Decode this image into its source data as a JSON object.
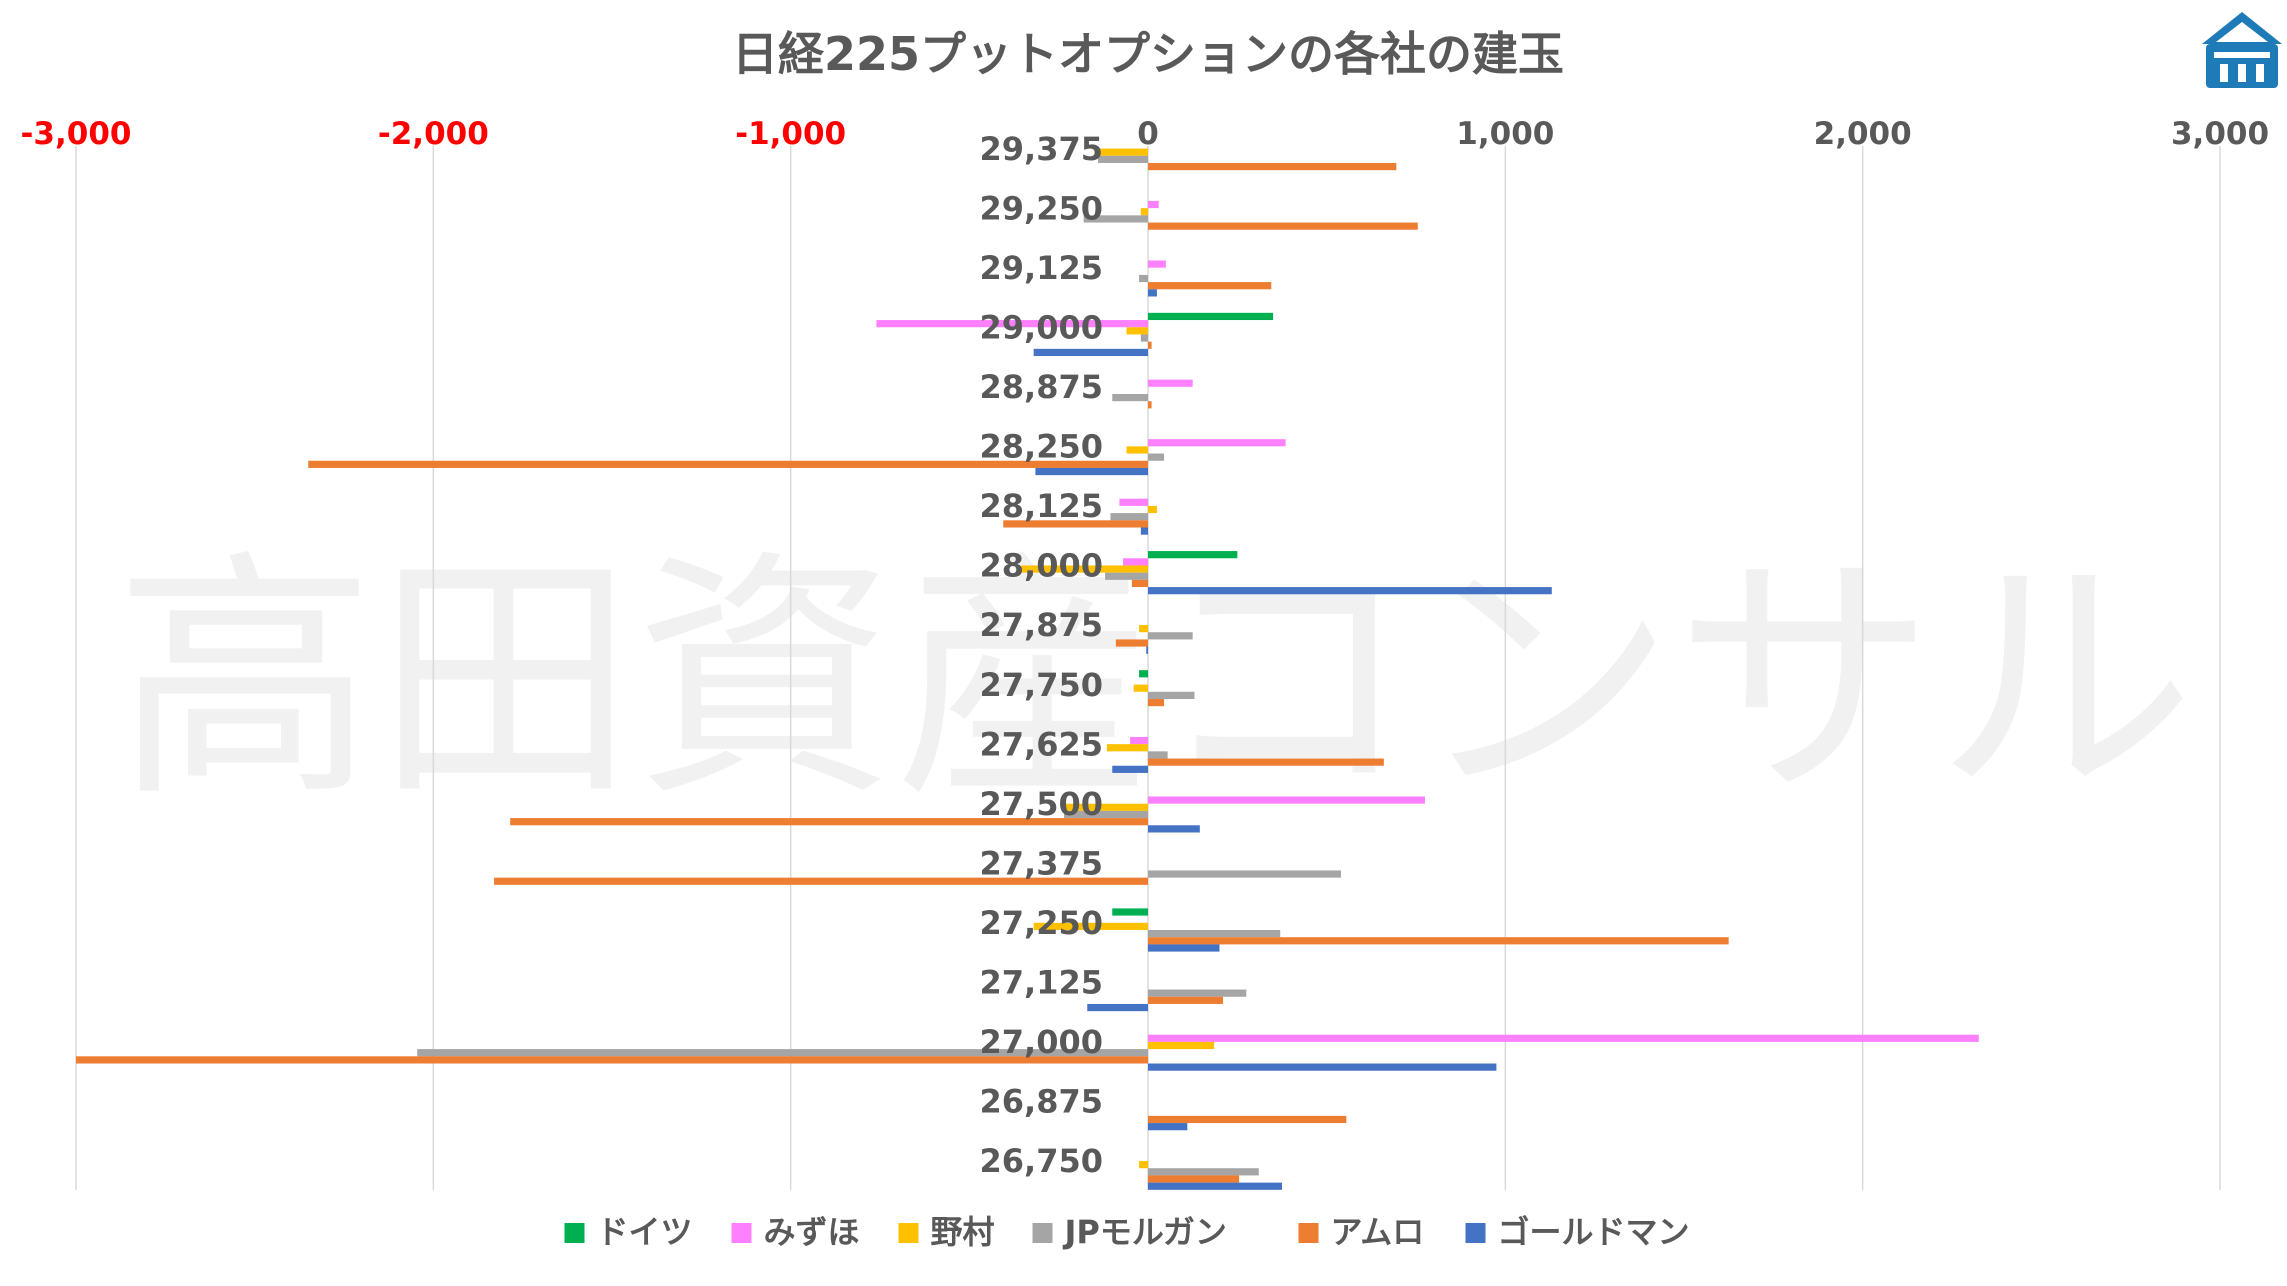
{
  "watermark": "高田資産コンサル",
  "chart_data": {
    "type": "bar",
    "orientation": "horizontal",
    "title": "日経225プットオプションの各社の建玉",
    "xlim": [
      -3000,
      3000
    ],
    "xticks": [
      -3000,
      -2000,
      -1000,
      0,
      1000,
      2000,
      3000
    ],
    "xtick_labels": [
      "-3,000",
      "-2,000",
      "-1,000",
      "0",
      "1,000",
      "2,000",
      "3,000"
    ],
    "colors": {
      "negative_tick": "#ff0000",
      "positive_tick": "#595959",
      "grid": "#d9d9d9"
    },
    "grid": true,
    "legend_position": "bottom",
    "categories": [
      "29,375",
      "29,250",
      "29,125",
      "29,000",
      "28,875",
      "28,250",
      "28,125",
      "28,000",
      "27,875",
      "27,750",
      "27,625",
      "27,500",
      "27,375",
      "27,250",
      "27,125",
      "27,000",
      "26,875",
      "26,750"
    ],
    "series": [
      {
        "name": "ドイツ",
        "color": "#00b050",
        "values": [
          0,
          0,
          0,
          350,
          0,
          0,
          0,
          250,
          0,
          -25,
          0,
          0,
          0,
          -100,
          0,
          0,
          0,
          0
        ]
      },
      {
        "name": "みずほ",
        "color": "#ff80ff",
        "values": [
          0,
          30,
          50,
          -760,
          125,
          385,
          -80,
          -70,
          0,
          0,
          -50,
          775,
          0,
          0,
          0,
          2325,
          0,
          0
        ]
      },
      {
        "name": "野村",
        "color": "#ffc000",
        "values": [
          -150,
          -20,
          0,
          -60,
          0,
          -60,
          25,
          -355,
          -25,
          -40,
          -115,
          -230,
          0,
          -320,
          0,
          185,
          0,
          -25
        ]
      },
      {
        "name": "JPモルガン",
        "color": "#a5a5a5",
        "values": [
          -140,
          -180,
          -25,
          -20,
          -100,
          45,
          -105,
          -120,
          125,
          130,
          55,
          -235,
          540,
          370,
          275,
          -2045,
          0,
          310
        ]
      },
      {
        "name": "アムロ",
        "color": "#ed7d31",
        "values": [
          695,
          755,
          345,
          10,
          10,
          -2350,
          -405,
          -45,
          -90,
          45,
          660,
          -1785,
          -1830,
          1625,
          210,
          -3000,
          555,
          255
        ]
      },
      {
        "name": "ゴールドマン",
        "color": "#4472c4",
        "values": [
          0,
          0,
          25,
          -320,
          0,
          -315,
          -20,
          1130,
          -5,
          0,
          -100,
          145,
          0,
          200,
          -170,
          975,
          110,
          375
        ]
      }
    ]
  }
}
